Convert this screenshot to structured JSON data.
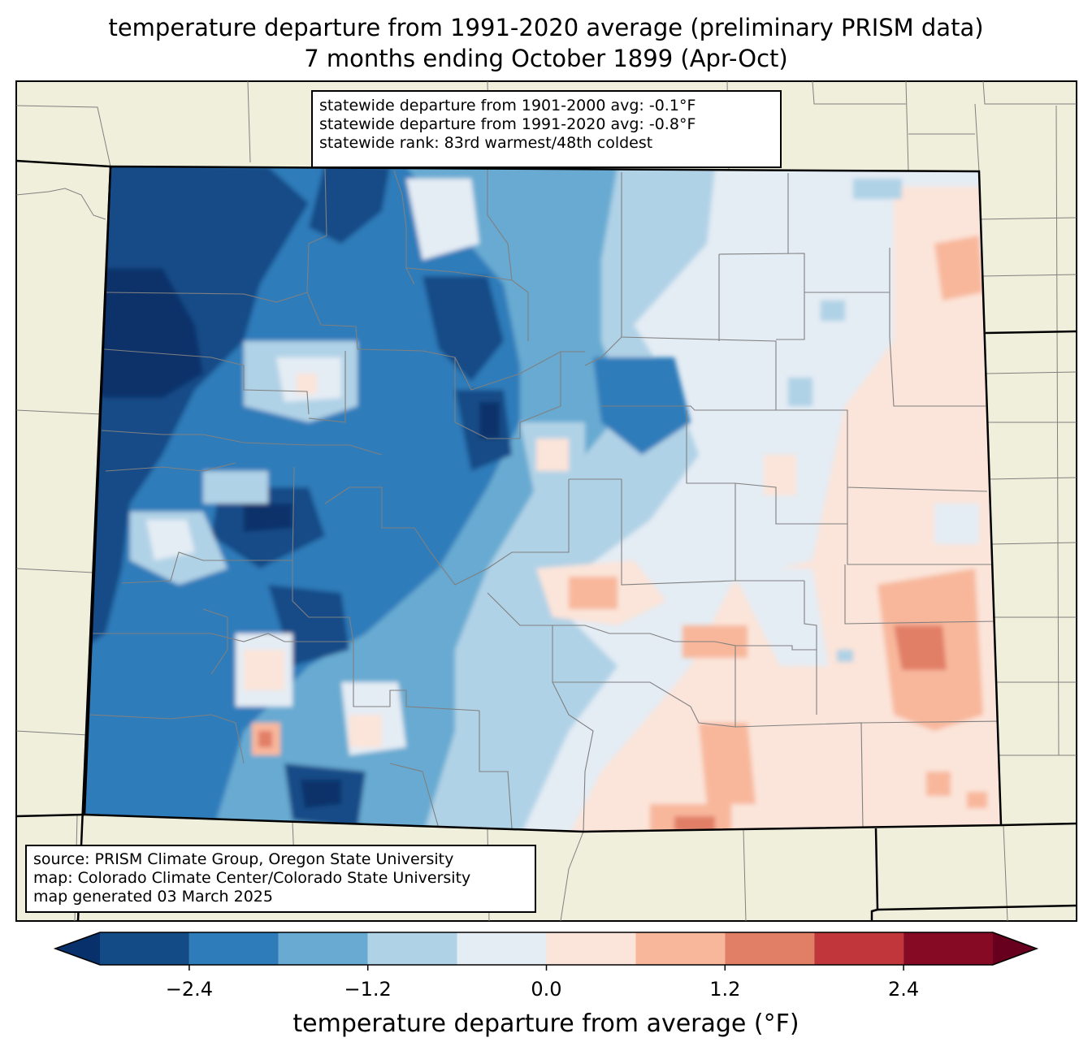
{
  "header": {
    "title_line1": "temperature departure from 1991-2020 average (preliminary PRISM data)",
    "title_line2": "7 months ending October 1899 (Apr-Oct)"
  },
  "stats": {
    "line1": "statewide departure from 1901-2000 avg: -0.1°F",
    "line2": "statewide departure from 1991-2020 avg: -0.8°F",
    "line3": "statewide rank: 83rd warmest/48th coldest"
  },
  "credits": {
    "line1": "source: PRISM Climate Group, Oregon State University",
    "line2": "map: Colorado Climate Center/Colorado State University",
    "line3": "map generated 03 March 2025"
  },
  "colorbar": {
    "label": "temperature departure from average (°F)",
    "ticks": [
      "−2.4",
      "−1.2",
      "0.0",
      "1.2",
      "2.4"
    ],
    "tick_values": [
      -2.4,
      -1.2,
      0.0,
      1.2,
      2.4
    ],
    "bins": [
      -3.0,
      -2.4,
      -1.8,
      -1.2,
      -0.6,
      0.0,
      0.6,
      1.2,
      1.8,
      2.4,
      3.0
    ],
    "colors": [
      "#08306b",
      "#134b87",
      "#2f7cba",
      "#68aad1",
      "#b0d2e6",
      "#e4ecf4",
      "#fbe4d9",
      "#f8b79b",
      "#e17e66",
      "#c1363a",
      "#870a24",
      "#67001f"
    ]
  },
  "map": {
    "land_color": "#f0efdc",
    "state_border_color": "#000000",
    "county_border_color": "#808080"
  }
}
